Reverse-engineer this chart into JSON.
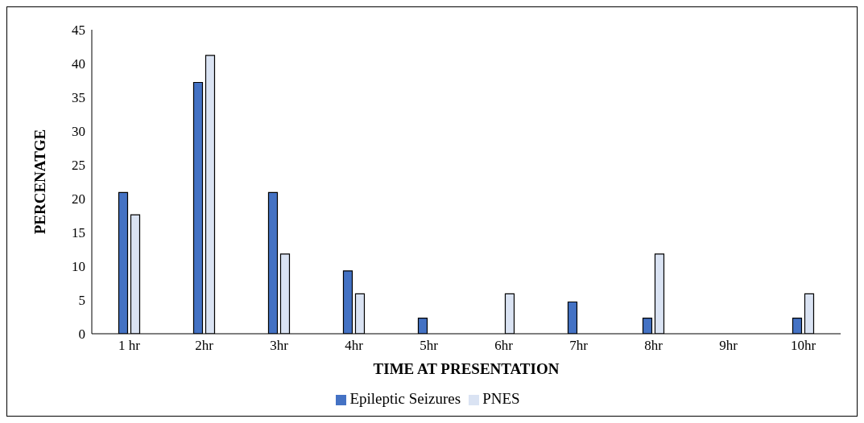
{
  "chart_data": {
    "type": "bar",
    "xlabel": "TIME AT PRESENTATION",
    "ylabel": "PERCENATGE",
    "categories": [
      "1 hr",
      "2hr",
      "3hr",
      "4hr",
      "5hr",
      "6hr",
      "7hr",
      "8hr",
      "9hr",
      "10hr"
    ],
    "series": [
      {
        "name": "Epileptic Seizures",
        "color": "#4472c4",
        "values": [
          20.9,
          37.2,
          20.9,
          9.3,
          2.3,
          0,
          4.7,
          2.3,
          0,
          2.3
        ]
      },
      {
        "name": "PNES",
        "color": "#dae3f3",
        "values": [
          17.6,
          41.2,
          11.8,
          5.9,
          0,
          5.9,
          0,
          11.8,
          0,
          5.9
        ]
      }
    ],
    "ylim": [
      0,
      45
    ],
    "yticks": [
      0,
      5,
      10,
      15,
      20,
      25,
      30,
      35,
      40,
      45
    ],
    "grid": false,
    "legend": "bottom"
  }
}
